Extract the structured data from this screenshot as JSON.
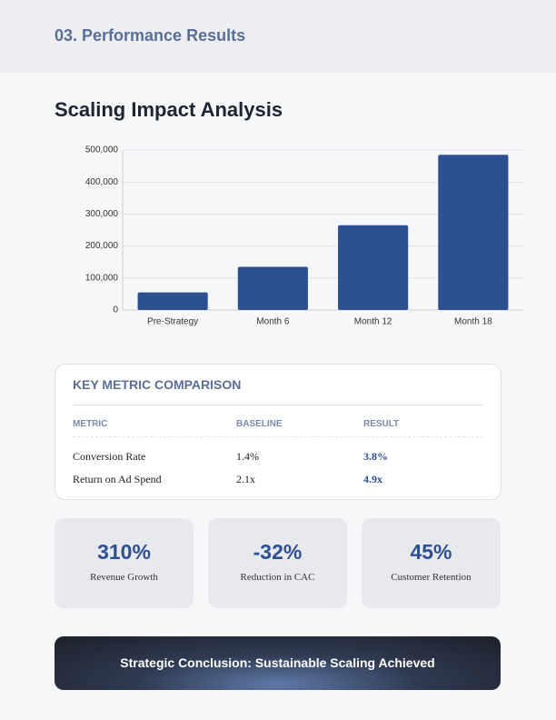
{
  "header": {
    "section": "03. Performance Results"
  },
  "chart_data": {
    "type": "bar",
    "title": "Scaling Impact Analysis",
    "categories": [
      "Pre-Strategy",
      "Month 6",
      "Month 12",
      "Month 18"
    ],
    "values": [
      55000,
      135000,
      265000,
      485000
    ],
    "color": "#2d5093",
    "ylim": [
      0,
      500000
    ],
    "yticks": [
      0,
      {
        "value": 100000,
        "label": "100,000"
      },
      {
        "value": 200000,
        "label": "200,000"
      },
      {
        "value": 300000,
        "label": "300,000"
      },
      {
        "value": 400000,
        "label": "400,000"
      },
      {
        "value": 500000,
        "label": "500,000"
      }
    ],
    "grid": true
  },
  "table": {
    "title": "KEY METRIC COMPARISON",
    "columns": [
      "METRIC",
      "BASELINE",
      "RESULT"
    ],
    "rows": [
      [
        "Conversion Rate",
        "1.4%",
        "3.8%"
      ],
      [
        "Return on Ad Spend",
        "2.1x",
        "4.9x"
      ]
    ]
  },
  "stats": [
    {
      "value": "310%",
      "label": "Revenue Growth"
    },
    {
      "value": "-32%",
      "label": "Reduction in CAC"
    },
    {
      "value": "45%",
      "label": "Customer Retention"
    }
  ],
  "conclusion": "Strategic Conclusion: Sustainable Scaling Achieved"
}
